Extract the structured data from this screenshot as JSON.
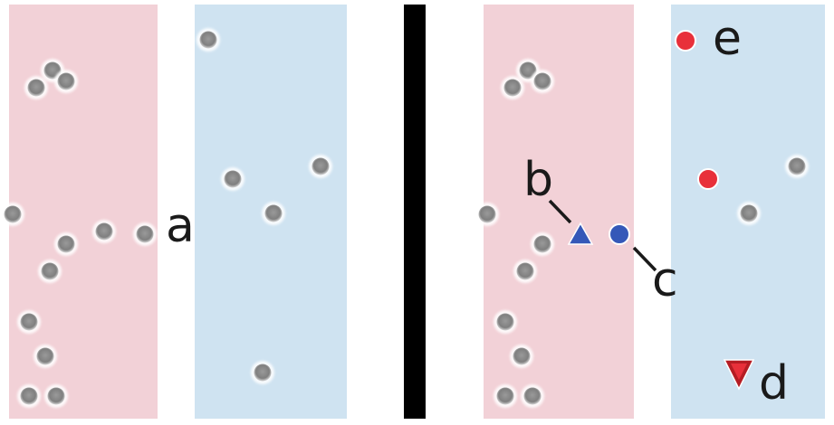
{
  "labels": {
    "a": "a",
    "b": "b",
    "c": "c",
    "d": "d",
    "e": "e"
  },
  "colors": {
    "pink_band": "#f2d1d7",
    "blue_band": "#cfe3f1",
    "divider": "#000000",
    "grey_particle": "#8f8f8f",
    "particle_halo": "#ffffff",
    "red_marker": "#e8303a",
    "dark_red_marker": "#b51d24",
    "blue_marker": "#3558b8",
    "text": "#1a1a1a"
  },
  "markers": {
    "b": {
      "shape": "triangle-up",
      "color": "blue_marker"
    },
    "c": {
      "shape": "circle",
      "color": "blue_marker"
    },
    "d": {
      "shape": "triangle-down",
      "color": "dark_red_marker"
    },
    "e": {
      "shape": "circle",
      "color": "red_marker"
    }
  }
}
